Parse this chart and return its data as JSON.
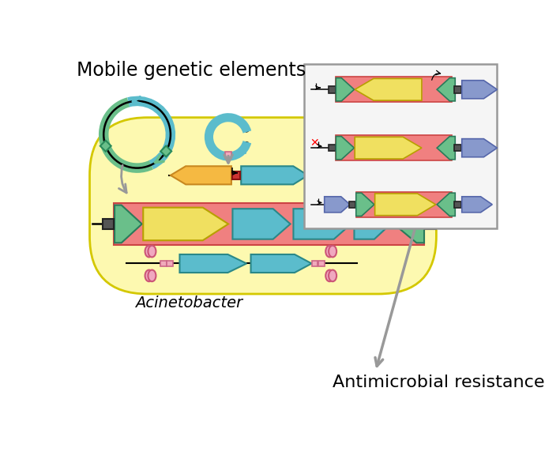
{
  "bg_color": "#ffffff",
  "cell_color": "#fdf9b0",
  "cell_edge": "#d4c800",
  "pink_red": "#f08080",
  "yellow": "#f0e060",
  "teal": "#5bbccc",
  "orange_arrow": "#f5b942",
  "green": "#6abf8a",
  "blue_purple": "#8899cc",
  "dark_gray": "#555555",
  "pink": "#f0a8c0",
  "pink_sq": "#f0aabb",
  "gray_arrow": "#999999",
  "text_mobile": "Mobile genetic elements",
  "text_acin": "Acinetobacter",
  "text_amr": "Antimicrobial resistance"
}
